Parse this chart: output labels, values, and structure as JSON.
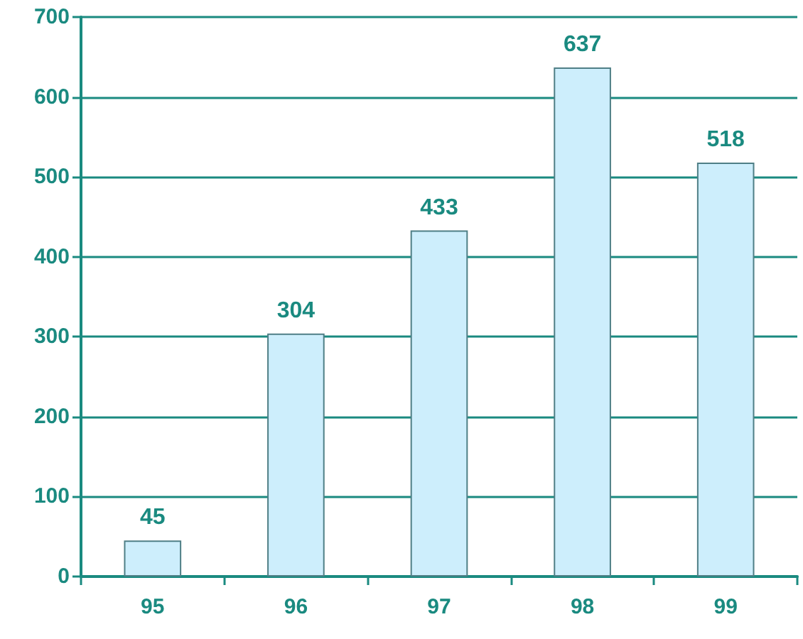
{
  "chart_data": {
    "type": "bar",
    "categories": [
      "95",
      "96",
      "97",
      "98",
      "99"
    ],
    "values": [
      45,
      304,
      433,
      637,
      518
    ],
    "color": "#cdeefc",
    "ylim": [
      0,
      700
    ],
    "yticks": [
      0,
      100,
      200,
      300,
      400,
      500,
      600,
      700
    ],
    "grid": "y",
    "data_labels": true
  }
}
